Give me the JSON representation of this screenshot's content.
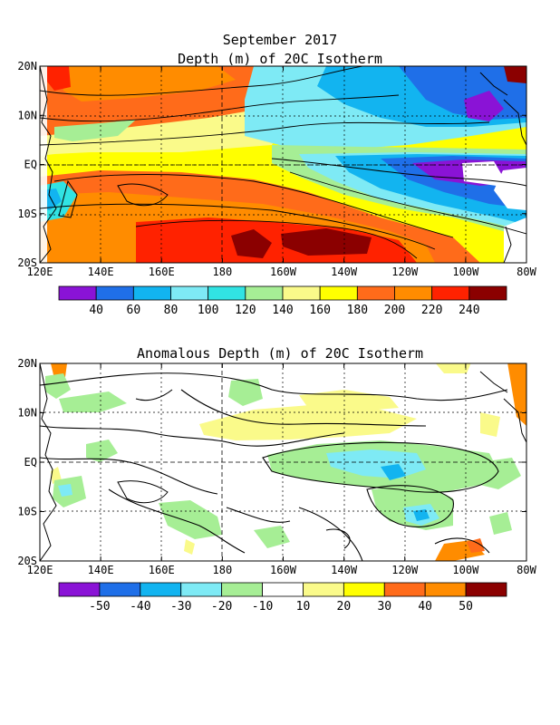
{
  "header": {
    "date": "September 2017"
  },
  "charts": [
    {
      "type": "heatmap",
      "title": "Depth (m) of 20C Isotherm",
      "x_ticks": [
        "120E",
        "140E",
        "160E",
        "180",
        "160W",
        "140W",
        "120W",
        "100W",
        "80W"
      ],
      "y_ticks": [
        "20N",
        "10N",
        "EQ",
        "10S",
        "20S"
      ],
      "colorbar_labels": [
        "40",
        "60",
        "80",
        "100",
        "120",
        "140",
        "160",
        "180",
        "200",
        "220",
        "240"
      ],
      "colorbar_colors": [
        "#8a13d6",
        "#1f6fe8",
        "#12b4f0",
        "#7eeaf5",
        "#31e3e3",
        "#a6ee95",
        "#fafa8a",
        "#ffff00",
        "#ff6b1a",
        "#ff8c00",
        "#ff2200",
        "#8b0000"
      ]
    },
    {
      "type": "heatmap",
      "title": "Anomalous Depth (m) of 20C Isotherm",
      "x_ticks": [
        "120E",
        "140E",
        "160E",
        "180",
        "160W",
        "140W",
        "120W",
        "100W",
        "80W"
      ],
      "y_ticks": [
        "20N",
        "10N",
        "EQ",
        "10S",
        "20S"
      ],
      "colorbar_labels": [
        "-50",
        "-40",
        "-30",
        "-20",
        "-10",
        "10",
        "20",
        "30",
        "40",
        "50"
      ],
      "colorbar_colors": [
        "#8a13d6",
        "#1f6fe8",
        "#12b4f0",
        "#7eeaf5",
        "#a6ee95",
        "#ffffff",
        "#fafa8a",
        "#ffff00",
        "#ff6b1a",
        "#ff8c00",
        "#8b0000"
      ]
    }
  ]
}
